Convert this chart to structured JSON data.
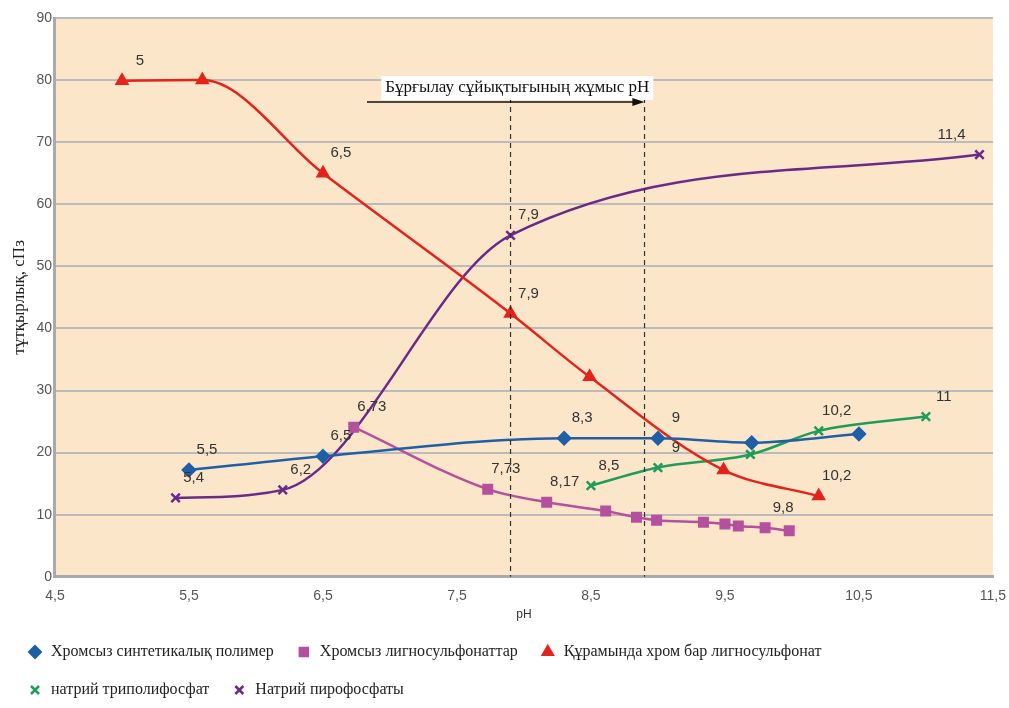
{
  "chart_data": {
    "type": "line",
    "xlabel": "pH",
    "ylabel": "тұтқырлық, сПз",
    "xlim": [
      4.5,
      11.5
    ],
    "ylim": [
      0,
      90
    ],
    "xticks": [
      {
        "value": 4.5,
        "label": "4,5"
      },
      {
        "value": 5.5,
        "label": "5,5"
      },
      {
        "value": 6.5,
        "label": "6,5"
      },
      {
        "value": 7.5,
        "label": "7,5"
      },
      {
        "value": 8.5,
        "label": "8,5"
      },
      {
        "value": 9.5,
        "label": "9,5"
      },
      {
        "value": 10.5,
        "label": "10,5"
      },
      {
        "value": 11.5,
        "label": "11,5"
      }
    ],
    "yticks": [
      0,
      10,
      20,
      30,
      40,
      50,
      60,
      70,
      80,
      90
    ],
    "grid": "y",
    "legend": "bottom",
    "series": [
      {
        "name": "Хромсыз синтетикалық полимер",
        "color": "#1f5fa8",
        "marker": "diamond",
        "x": [
          5.5,
          6.5,
          8.3,
          9,
          9.7,
          10.5
        ],
        "values": [
          17.2,
          19.4,
          22.3,
          22.3,
          21.6,
          23
        ]
      },
      {
        "name": "Хромсыз лигносульфонаттар",
        "color": "#b5509e",
        "marker": "square",
        "x": [
          6.73,
          7.73,
          8.17,
          8.61,
          8.84,
          8.99,
          9.34,
          9.5,
          9.6,
          9.8,
          9.98
        ],
        "values": [
          24.1,
          14.1,
          12,
          10.6,
          9.6,
          9.1,
          8.8,
          8.5,
          8.2,
          7.9,
          7.4
        ]
      },
      {
        "name": "Құрамында хром бар лигносульфонат",
        "color": "#e3231c",
        "marker": "triangle",
        "x": [
          5,
          5.6,
          6.5,
          7.9,
          8.49,
          9.49,
          10.2
        ],
        "values": [
          79.9,
          80,
          65,
          42.4,
          32.2,
          17.2,
          13
        ]
      },
      {
        "name": "натрий триполифосфат",
        "color": "#1e9c5a",
        "marker": "cross",
        "x": [
          8.5,
          9,
          9.69,
          10.2,
          11
        ],
        "values": [
          14.7,
          17.6,
          19.7,
          23.5,
          25.8
        ]
      },
      {
        "name": "Натрий пирофосфаты",
        "color": "#6a2a8a",
        "marker": "cross",
        "x": [
          5.4,
          6.2,
          7.9,
          11.4
        ],
        "values": [
          12.7,
          14,
          55,
          68
        ]
      }
    ],
    "ref_lines": [
      {
        "axis": "x",
        "value": 7.9,
        "color": "#333333",
        "line_style": "dashed"
      },
      {
        "axis": "x",
        "value": 8.9,
        "color": "#333333",
        "line_style": "dashed"
      }
    ],
    "annotations": [
      "Бұрғылау сұйықтығының жұмыс pH",
      {
        "text": "5,5",
        "x": 5.5,
        "y": 17.2
      },
      {
        "text": "6,5",
        "x": 6.5,
        "y": 19.4
      },
      {
        "text": "8,3",
        "x": 8.3,
        "y": 22.3
      },
      {
        "text": "9",
        "x": 9,
        "y": 22.3
      },
      {
        "text": "10,2",
        "x": 10.2,
        "y": 23.5
      },
      {
        "text": "5",
        "x": 5,
        "y": 79.9
      },
      {
        "text": "6,5",
        "x": 6.5,
        "y": 65
      },
      {
        "text": "7,9",
        "x": 7.9,
        "y": 42.4
      },
      {
        "text": "10,2",
        "x": 10.2,
        "y": 13
      },
      {
        "text": "5,4",
        "x": 5.4,
        "y": 12.7
      },
      {
        "text": "6,2",
        "x": 6.2,
        "y": 14
      },
      {
        "text": "7,9",
        "x": 7.9,
        "y": 55
      },
      {
        "text": "11,4",
        "x": 11.4,
        "y": 68
      },
      {
        "text": "6,73",
        "x": 6.73,
        "y": 24.1
      },
      {
        "text": "7,73",
        "x": 7.73,
        "y": 14.1
      },
      {
        "text": "8,17",
        "x": 8.17,
        "y": 12
      },
      {
        "text": "9,8",
        "x": 9.8,
        "y": 7.9
      },
      {
        "text": "8,5",
        "x": 8.5,
        "y": 14.7
      },
      {
        "text": "9",
        "x": 9,
        "y": 17.6
      },
      {
        "text": "11",
        "x": 11,
        "y": 25.8
      }
    ]
  }
}
